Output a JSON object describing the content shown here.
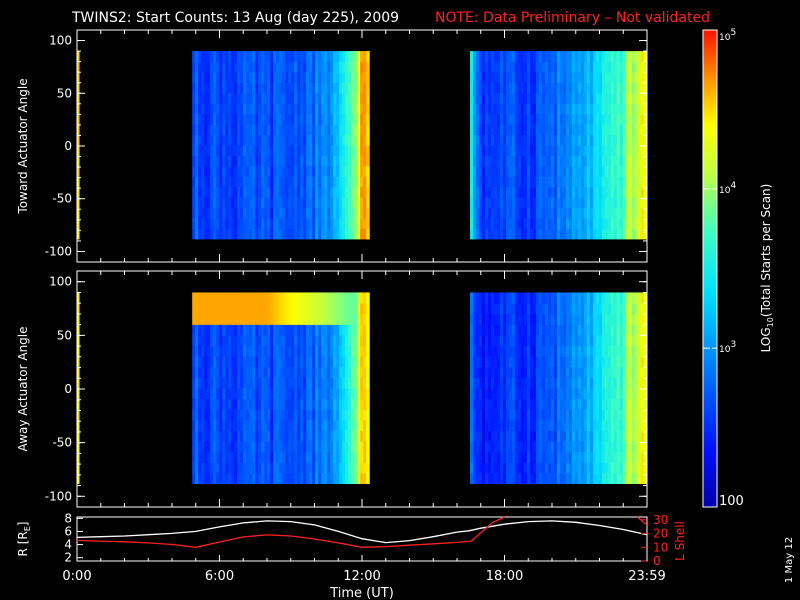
{
  "title": {
    "main": "TWINS2: Start Counts: 13 Aug (day 225), 2009",
    "note": "NOTE: Data Preliminary – Not validated"
  },
  "side_stamp": "1 May 12",
  "chart_data": [
    {
      "type": "heatmap",
      "ylabel": "Toward Actuator Angle",
      "ylim": [
        -110,
        110
      ],
      "yticks": [
        "100",
        "50",
        "0",
        "-50",
        "-100"
      ],
      "xlim": [
        0,
        24
      ],
      "angle_range": [
        -88,
        90
      ],
      "blocks": [
        {
          "t_start": 0.0,
          "t_end": 0.08,
          "level": 0.88
        },
        {
          "t_start": 4.85,
          "t_end": 12.3,
          "levels_by_time": [
            [
              4.85,
              0.22
            ],
            [
              7.0,
              0.2
            ],
            [
              9.0,
              0.22
            ],
            [
              10.5,
              0.3
            ],
            [
              11.2,
              0.45
            ],
            [
              11.7,
              0.62
            ],
            [
              12.0,
              0.9
            ]
          ]
        },
        {
          "t_start": 16.55,
          "t_end": 23.99,
          "levels_by_time": [
            [
              16.55,
              0.5
            ],
            [
              17.0,
              0.2
            ],
            [
              19.0,
              0.2
            ],
            [
              21.0,
              0.32
            ],
            [
              22.5,
              0.5
            ],
            [
              23.5,
              0.72
            ],
            [
              23.99,
              0.78
            ]
          ]
        }
      ]
    },
    {
      "type": "heatmap",
      "ylabel": "Away Actuator Angle",
      "ylim": [
        -110,
        110
      ],
      "yticks": [
        "100",
        "50",
        "0",
        "-50",
        "-100"
      ],
      "xlim": [
        0,
        24
      ],
      "angle_range": [
        -88,
        90
      ],
      "blocks": [
        {
          "t_start": 0.0,
          "t_end": 0.08,
          "level": 0.85
        },
        {
          "t_start": 4.85,
          "t_end": 12.3,
          "levels_by_time": [
            [
              4.85,
              0.22
            ],
            [
              7.0,
              0.2
            ],
            [
              9.0,
              0.22
            ],
            [
              10.5,
              0.28
            ],
            [
              11.2,
              0.4
            ],
            [
              11.7,
              0.6
            ],
            [
              12.0,
              0.85
            ]
          ],
          "band": {
            "angle_min": 68,
            "angle_max": 88,
            "level": 0.88
          }
        },
        {
          "t_start": 16.55,
          "t_end": 23.99,
          "levels_by_time": [
            [
              16.55,
              0.25
            ],
            [
              17.0,
              0.15
            ],
            [
              19.0,
              0.18
            ],
            [
              21.0,
              0.3
            ],
            [
              22.5,
              0.5
            ],
            [
              23.5,
              0.72
            ],
            [
              23.99,
              0.78
            ]
          ]
        }
      ]
    },
    {
      "type": "line",
      "ylabel": "R [R",
      "ylabel_sub": "E",
      "ylabel_close": "]",
      "ylabel_right": "L Shell",
      "xlabel": "Time (UT)",
      "xlim": [
        0,
        24
      ],
      "xticks": [
        "0:00",
        "6:00",
        "12:00",
        "18:00",
        "23:59"
      ],
      "yticks_left": [
        "8",
        "6",
        "4",
        "2"
      ],
      "yticks_right": [
        "30",
        "20",
        "10",
        "0"
      ],
      "ylim_left": [
        1.5,
        8.2
      ],
      "ylim_right": [
        0,
        32
      ],
      "series": [
        {
          "axis": "left",
          "color": "#ffffff",
          "x": [
            0,
            1,
            2,
            3,
            4,
            5,
            6,
            7,
            8,
            9,
            10,
            11,
            12,
            13,
            14,
            15,
            16,
            16.5,
            17,
            18,
            19,
            20,
            21,
            22,
            23,
            24
          ],
          "y": [
            5.1,
            5.2,
            5.3,
            5.5,
            5.7,
            6.0,
            6.7,
            7.3,
            7.6,
            7.5,
            7.0,
            6.0,
            4.9,
            4.3,
            4.6,
            5.2,
            5.9,
            6.1,
            6.5,
            7.1,
            7.5,
            7.6,
            7.4,
            6.9,
            6.3,
            5.5
          ]
        },
        {
          "axis": "right",
          "color": "#ff2020",
          "x": [
            0,
            1,
            2,
            3,
            4,
            5,
            6,
            7,
            8,
            9,
            10,
            11,
            12,
            13,
            14,
            15,
            16,
            16.6,
            17.5,
            18.0
          ],
          "y": [
            15.0,
            14.5,
            14.0,
            13.2,
            12.0,
            10.0,
            13.8,
            17.5,
            19.0,
            18.2,
            16.0,
            13.2,
            10.0,
            10.5,
            11.5,
            12.5,
            13.5,
            14.5,
            28.0,
            32.0
          ]
        },
        {
          "axis": "right",
          "color": "#ff2020",
          "x": [
            23.6,
            24
          ],
          "y": [
            32.0,
            26.0
          ]
        }
      ]
    }
  ],
  "colorbar": {
    "label": "LOG",
    "label_sub": "10",
    "label_rest": "(Total Starts per Scan)",
    "ticks": [
      {
        "base": "10",
        "exp": "5",
        "frac": 1.0
      },
      {
        "base": "10",
        "exp": "4",
        "frac": 0.667
      },
      {
        "base": "10",
        "exp": "3",
        "frac": 0.333
      },
      {
        "base": "100",
        "exp": "",
        "frac": 0.0
      }
    ]
  }
}
